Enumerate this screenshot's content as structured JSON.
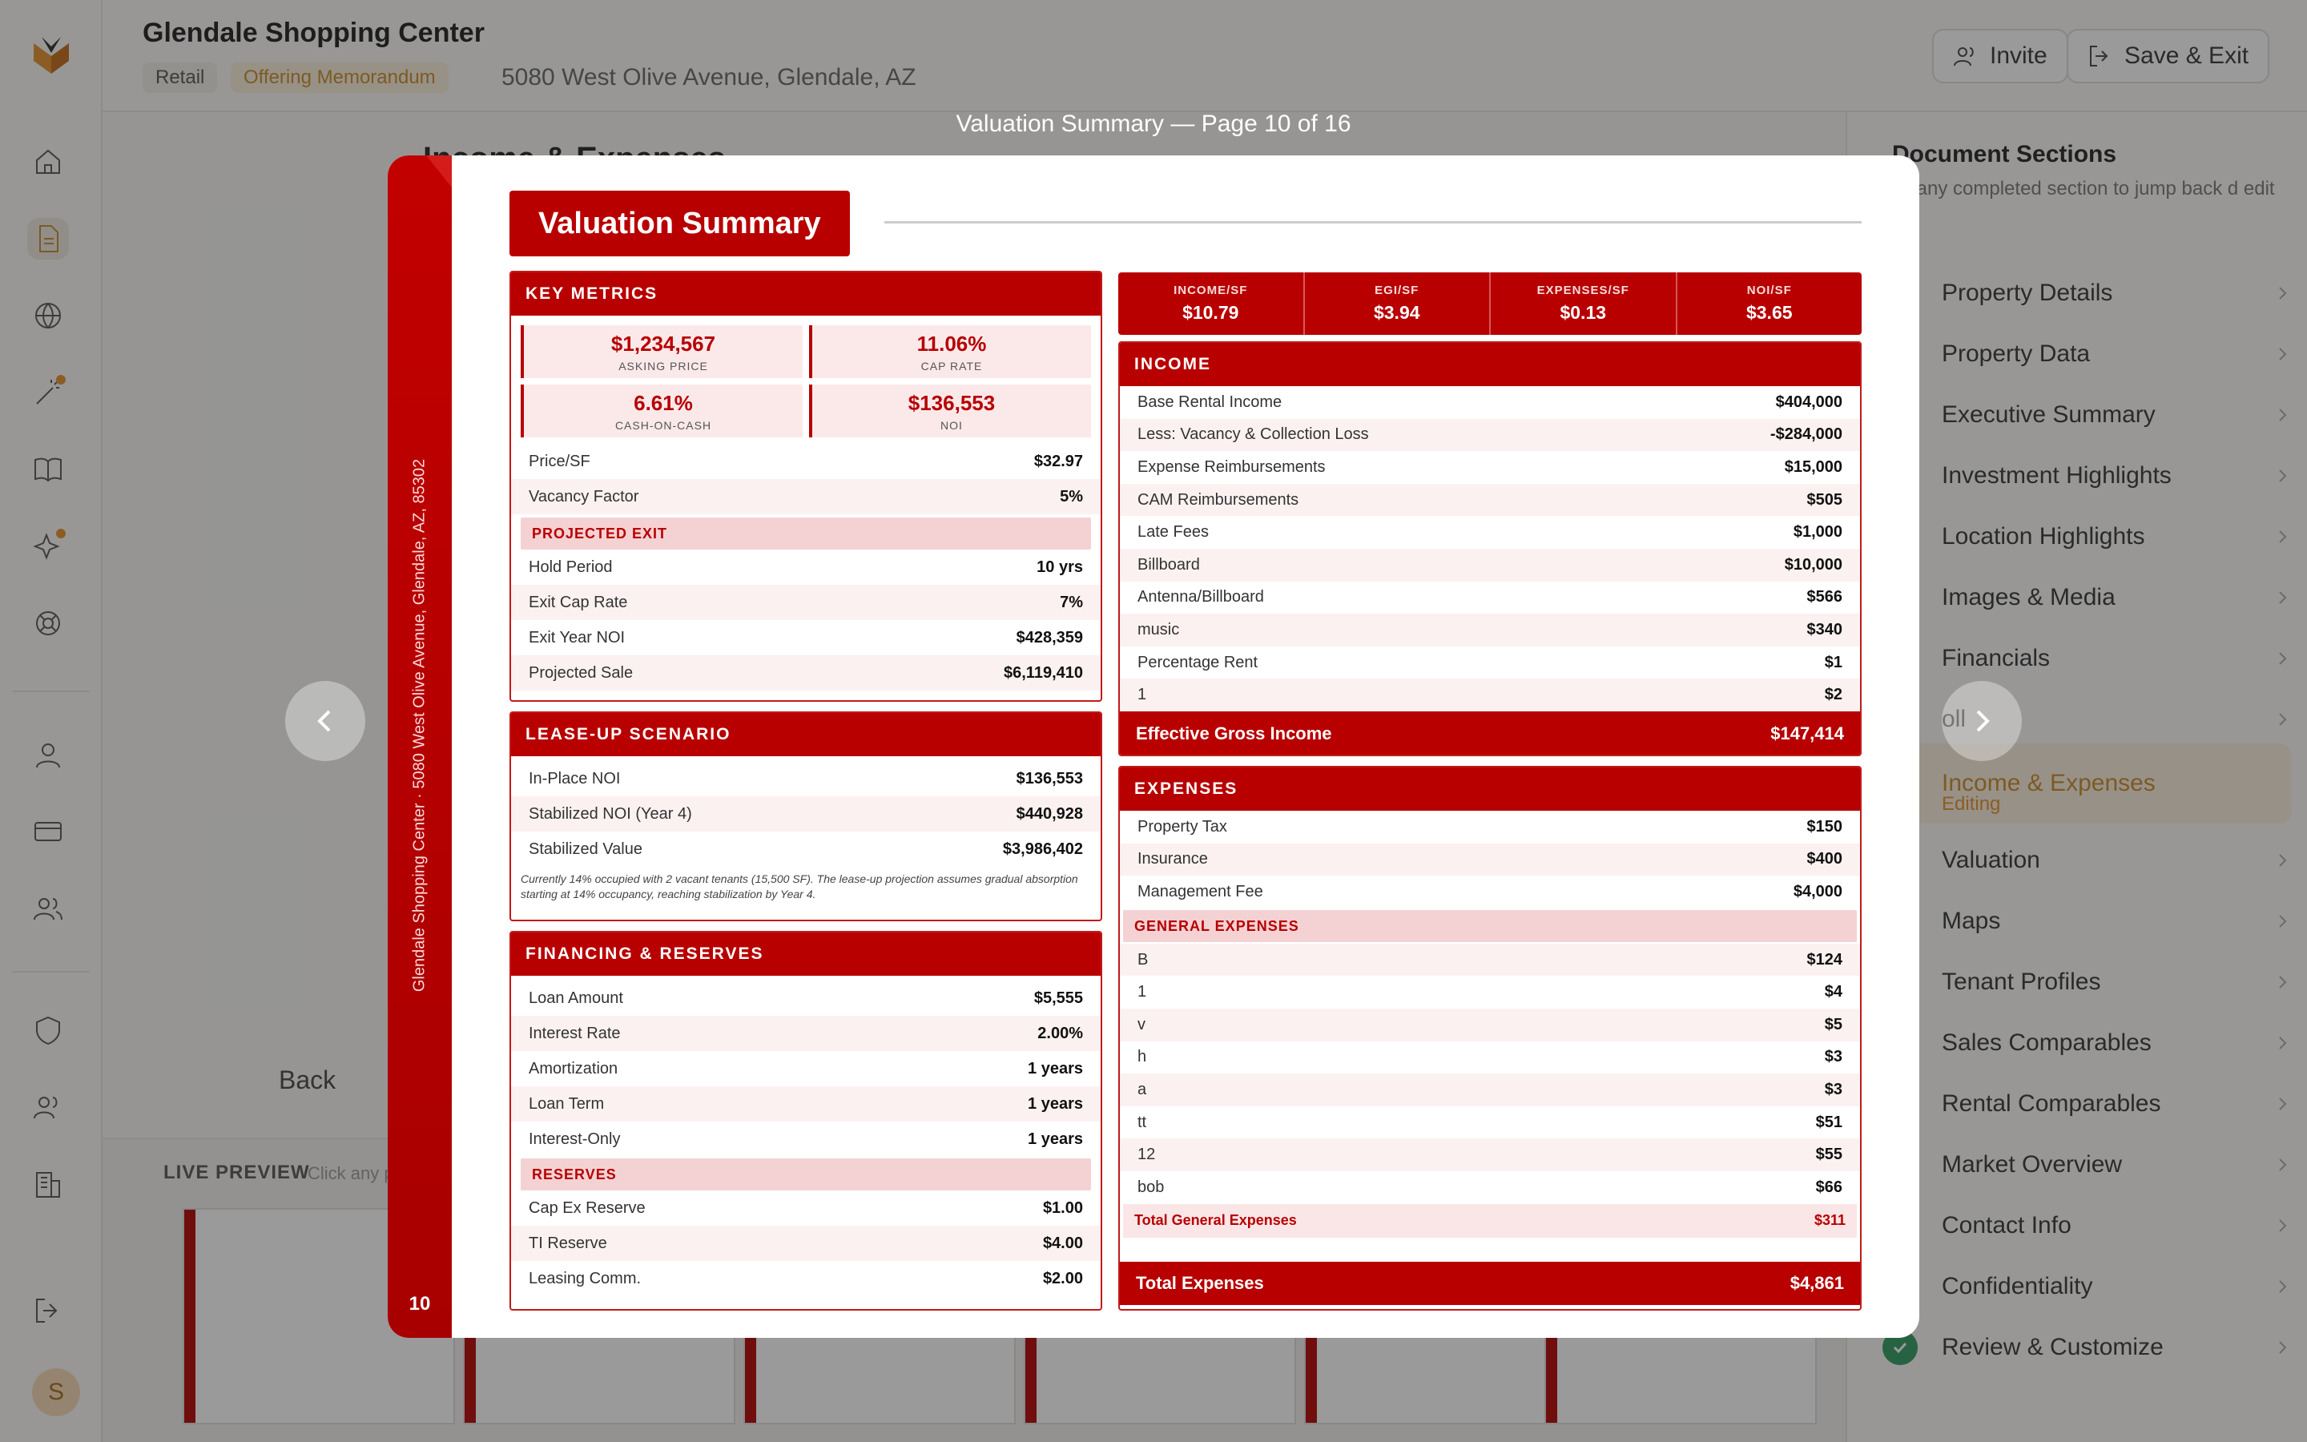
{
  "header": {
    "title": "Glendale Shopping Center",
    "tag_retail": "Retail",
    "tag_type": "Offering Memorandum",
    "address": "5080 West Olive Avenue, Glendale, AZ",
    "invite_label": "Invite",
    "save_label": "Save & Exit"
  },
  "background": {
    "section_title": "Income & Expenses",
    "back_label": "Back",
    "live_preview_label": "LIVE PREVIEW",
    "live_preview_hint": "Click any p"
  },
  "right_panel": {
    "title": "Document Sections",
    "subtitle": "ck any completed section to jump back d edit",
    "sections": [
      {
        "label": "Property Details"
      },
      {
        "label": "Property Data"
      },
      {
        "label": "Executive Summary"
      },
      {
        "label": "Investment Highlights"
      },
      {
        "label": "Location Highlights"
      },
      {
        "label": "Images & Media"
      },
      {
        "label": "Financials"
      },
      {
        "label": "oll"
      },
      {
        "label": "Income & Expenses",
        "status": "Editing"
      },
      {
        "label": "Valuation"
      },
      {
        "label": "Maps"
      },
      {
        "label": "Tenant Profiles"
      },
      {
        "label": "Sales Comparables"
      },
      {
        "label": "Rental Comparables"
      },
      {
        "label": "Market Overview"
      },
      {
        "label": "Contact Info"
      },
      {
        "label": "Confidentiality"
      },
      {
        "label": "Review & Customize"
      }
    ]
  },
  "modal": {
    "caption": "Valuation Summary — Page 10 of 16",
    "spine_text": "Glendale Shopping Center · 5080 West Olive Avenue, Glendale, AZ, 85302",
    "page_number": "10",
    "title": "Valuation Summary",
    "key_metrics": {
      "heading": "KEY METRICS",
      "tiles": [
        {
          "value": "$1,234,567",
          "label": "ASKING PRICE"
        },
        {
          "value": "11.06%",
          "label": "CAP RATE"
        },
        {
          "value": "6.61%",
          "label": "CASH-ON-CASH"
        },
        {
          "value": "$136,553",
          "label": "NOI"
        }
      ],
      "rows": [
        {
          "label": "Price/SF",
          "value": "$32.97"
        },
        {
          "label": "Vacancy Factor",
          "value": "5%"
        }
      ],
      "exit_heading": "PROJECTED EXIT",
      "exit_rows": [
        {
          "label": "Hold Period",
          "value": "10 yrs"
        },
        {
          "label": "Exit Cap Rate",
          "value": "7%"
        },
        {
          "label": "Exit Year NOI",
          "value": "$428,359"
        },
        {
          "label": "Projected Sale",
          "value": "$6,119,410"
        }
      ]
    },
    "lease_up": {
      "heading": "LEASE-UP SCENARIO",
      "rows": [
        {
          "label": "In-Place NOI",
          "value": "$136,553"
        },
        {
          "label": "Stabilized NOI (Year 4)",
          "value": "$440,928"
        },
        {
          "label": "Stabilized Value",
          "value": "$3,986,402"
        }
      ],
      "note": "Currently 14% occupied with 2 vacant tenants (15,500 SF). The lease-up projection assumes gradual absorption starting at 14% occupancy, reaching stabilization by Year 4."
    },
    "financing": {
      "heading": "FINANCING & RESERVES",
      "rows": [
        {
          "label": "Loan Amount",
          "value": "$5,555"
        },
        {
          "label": "Interest Rate",
          "value": "2.00%"
        },
        {
          "label": "Amortization",
          "value": "1 years"
        },
        {
          "label": "Loan Term",
          "value": "1 years"
        },
        {
          "label": "Interest-Only",
          "value": "1 years"
        }
      ],
      "reserves_heading": "RESERVES",
      "reserve_rows": [
        {
          "label": "Cap Ex Reserve",
          "value": "$1.00"
        },
        {
          "label": "TI Reserve",
          "value": "$4.00"
        },
        {
          "label": "Leasing Comm.",
          "value": "$2.00"
        }
      ]
    },
    "per_sf": [
      {
        "label": "INCOME/SF",
        "value": "$10.79"
      },
      {
        "label": "EGI/SF",
        "value": "$3.94"
      },
      {
        "label": "EXPENSES/SF",
        "value": "$0.13"
      },
      {
        "label": "NOI/SF",
        "value": "$3.65"
      }
    ],
    "income": {
      "heading": "INCOME",
      "rows": [
        {
          "label": "Base Rental Income",
          "value": "$404,000"
        },
        {
          "label": "Less: Vacancy & Collection Loss",
          "value": "-$284,000"
        },
        {
          "label": "Expense Reimbursements",
          "value": "$15,000"
        },
        {
          "label": "CAM Reimbursements",
          "value": "$505"
        },
        {
          "label": "Late Fees",
          "value": "$1,000"
        },
        {
          "label": "Billboard",
          "value": "$10,000"
        },
        {
          "label": "Antenna/Billboard",
          "value": "$566"
        },
        {
          "label": "music",
          "value": "$340"
        },
        {
          "label": "Percentage Rent",
          "value": "$1"
        },
        {
          "label": "1",
          "value": "$2"
        }
      ],
      "total_label": "Effective Gross Income",
      "total_value": "$147,414"
    },
    "expenses": {
      "heading": "EXPENSES",
      "rows": [
        {
          "label": "Property Tax",
          "value": "$150"
        },
        {
          "label": "Insurance",
          "value": "$400"
        },
        {
          "label": "Management Fee",
          "value": "$4,000"
        }
      ],
      "general_heading": "GENERAL EXPENSES",
      "general_rows": [
        {
          "label": "B",
          "value": "$124"
        },
        {
          "label": "1",
          "value": "$4"
        },
        {
          "label": "v",
          "value": "$5"
        },
        {
          "label": "h",
          "value": "$3"
        },
        {
          "label": "a",
          "value": "$3"
        },
        {
          "label": "tt",
          "value": "$51"
        },
        {
          "label": "12",
          "value": "$55"
        },
        {
          "label": "bob",
          "value": "$66"
        }
      ],
      "general_total_label": "Total General Expenses",
      "general_total_value": "$311",
      "total_label": "Total Expenses",
      "total_value": "$4,861"
    }
  },
  "colors": {
    "brand_red": "#b80000",
    "accent_orange": "#e3902a",
    "success_green": "#2e9b61"
  }
}
